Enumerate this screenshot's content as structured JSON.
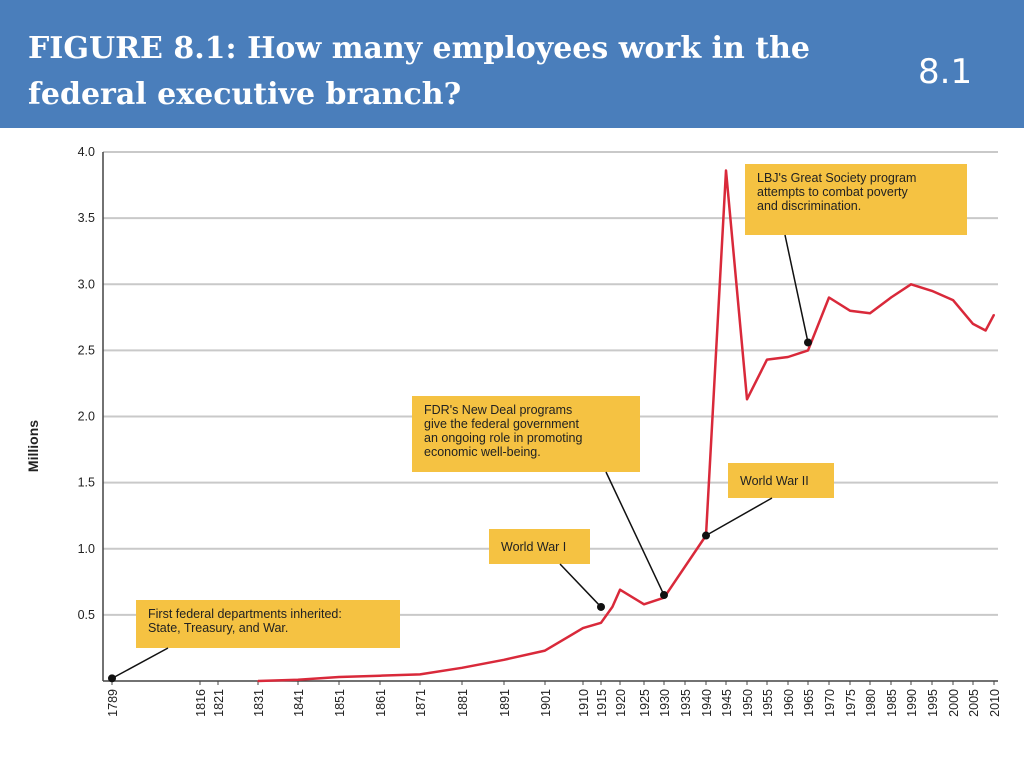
{
  "header": {
    "title": "FIGURE 8.1: How many employees work in the federal executive branch?",
    "slide_number": "8.1",
    "bg_color": "#4a7ebb"
  },
  "chart_data": {
    "type": "line",
    "ylabel": "Millions",
    "xlabel": "",
    "ylim": [
      0,
      4.0
    ],
    "y_ticks": [
      "4.0",
      "3.5",
      "3.0",
      "2.5",
      "2.0",
      "1.5",
      "1.0",
      "0.5"
    ],
    "x_ticks": [
      "1789",
      "1816",
      "1821",
      "1831",
      "1841",
      "1851",
      "1861",
      "1871",
      "1881",
      "1891",
      "1901",
      "1910",
      "1915",
      "1920",
      "1925",
      "1930",
      "1935",
      "1940",
      "1945",
      "1950",
      "1955",
      "1960",
      "1965",
      "1970",
      "1975",
      "1980",
      "1985",
      "1990",
      "1995",
      "2000",
      "2005",
      "2010"
    ],
    "grid": true,
    "line_color": "#d9293a",
    "series": [
      {
        "x": [
          "1831",
          "1841",
          "1851",
          "1861",
          "1871",
          "1881",
          "1891",
          "1901",
          "1910",
          "1915",
          "1918",
          "1920",
          "1925",
          "1930",
          "1940",
          "1945",
          "1950",
          "1955",
          "1960",
          "1965",
          "1970",
          "1975",
          "1980",
          "1985",
          "1990",
          "1995",
          "2000",
          "2005",
          "2008",
          "2010"
        ],
        "values": [
          0.0,
          0.01,
          0.03,
          0.04,
          0.05,
          0.1,
          0.16,
          0.23,
          0.4,
          0.44,
          0.56,
          0.69,
          0.58,
          0.63,
          1.1,
          3.86,
          2.13,
          2.43,
          2.45,
          2.5,
          2.9,
          2.8,
          2.78,
          2.9,
          3.0,
          2.95,
          2.88,
          2.7,
          2.65,
          2.77
        ]
      }
    ],
    "annotations": [
      {
        "lines": [
          "LBJ's Great Society program",
          "attempts to combat poverty",
          "and discrimination."
        ],
        "point_x": "1965",
        "point_y": 2.56
      },
      {
        "lines": [
          "FDR's New Deal programs",
          "give the federal government",
          "an ongoing role in promoting",
          "economic well-being."
        ],
        "point_x": "1930",
        "point_y": 0.65
      },
      {
        "lines": [
          "World War II"
        ],
        "point_x": "1940",
        "point_y": 1.1
      },
      {
        "lines": [
          "World War I"
        ],
        "point_x": "1915",
        "point_y": 0.56
      },
      {
        "lines": [
          "First federal departments inherited:",
          "State, Treasury, and War."
        ],
        "point_x": "1789",
        "point_y": 0.02
      }
    ]
  }
}
